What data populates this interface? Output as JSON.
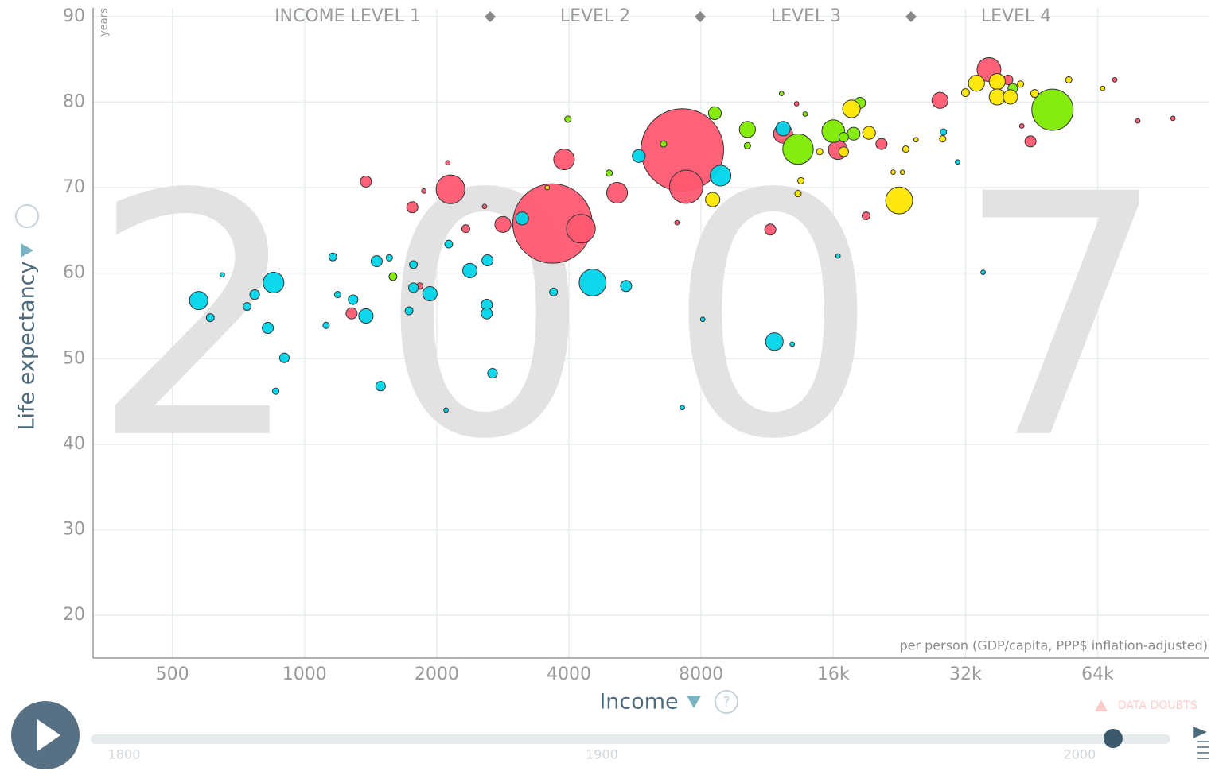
{
  "chart_data": {
    "type": "bubble",
    "year": 2007,
    "x_label": "Income",
    "x_sublabel": "per person (GDP/capita, PPP$ inflation-adjusted)",
    "y_label": "Life expectancy",
    "y_unit": "years",
    "income_levels": [
      "INCOME LEVEL 1",
      "LEVEL 2",
      "LEVEL 3",
      "LEVEL 4"
    ],
    "warning": "DATA DOUBTS",
    "x_log": true,
    "grid": true,
    "xlim": [
      330,
      115000
    ],
    "ylim": [
      15,
      91
    ],
    "xticks": [
      500,
      1000,
      2000,
      4000,
      8000,
      {
        "value": 16000,
        "label": "16k"
      },
      {
        "value": 32000,
        "label": "32k"
      },
      {
        "value": 64000,
        "label": "64k"
      }
    ],
    "yticks": [
      20,
      30,
      40,
      50,
      60,
      70,
      80,
      90
    ],
    "timeline": {
      "lim": [
        1794,
        2018
      ],
      "ticks": [
        1800,
        1900,
        2000
      ]
    },
    "series": [
      {
        "color": "#ff5872",
        "x": [
          7250,
          3670,
          7400,
          4260,
          2150,
          3900,
          5150,
          2830,
          1380,
          1760,
          1280,
          16400,
          12300,
          11500,
          19000,
          20600,
          36200,
          28000,
          45000,
          40000,
          2330,
          2120,
          2570,
          1870,
          70000,
          79000,
          95000,
          43000,
          13200,
          7050,
          1830
        ],
        "values": [
          74.4,
          65.8,
          70.1,
          65.2,
          69.8,
          73.3,
          69.4,
          65.7,
          70.7,
          67.7,
          55.3,
          74.4,
          76.3,
          65.1,
          66.7,
          75.1,
          83.8,
          80.2,
          75.4,
          82.6,
          65.2,
          72.9,
          67.8,
          69.6,
          82.6,
          77.8,
          78.1,
          77.2,
          79.8,
          65.9,
          58.5
        ],
        "sizes": [
          1320,
          1220,
          215,
          160,
          160,
          83,
          83,
          50,
          24,
          24,
          24,
          70,
          70,
          24,
          12,
          24,
          110,
          50,
          24,
          18,
          12,
          4,
          4,
          4,
          4,
          4,
          4,
          4,
          4,
          4,
          8
        ]
      },
      {
        "color": "#7feb00",
        "x": [
          50500,
          13300,
          16000,
          10200,
          8600,
          18400,
          17800,
          16900,
          3980,
          4940,
          1590,
          6570,
          12200,
          41000,
          10200,
          13800
        ],
        "values": [
          79.1,
          74.5,
          76.6,
          76.8,
          78.7,
          79.9,
          76.3,
          75.9,
          78.0,
          71.7,
          59.6,
          75.1,
          81.0,
          81.6,
          74.9,
          78.6
        ],
        "sizes": [
          330,
          180,
          100,
          50,
          32,
          24,
          32,
          18,
          8,
          8,
          12,
          8,
          4,
          18,
          8,
          4
        ]
      },
      {
        "color": "#ffe700",
        "x": [
          22600,
          8500,
          17600,
          33900,
          37800,
          37800,
          40500,
          19300,
          16900,
          13300,
          13500,
          23400,
          32000,
          55000,
          65700,
          14900,
          46000,
          42700,
          28400,
          21900,
          23000,
          24700,
          3570
        ],
        "values": [
          68.5,
          68.6,
          79.2,
          82.2,
          82.4,
          80.6,
          80.6,
          76.4,
          74.2,
          69.3,
          70.8,
          74.5,
          81.1,
          82.6,
          81.6,
          74.2,
          81.0,
          82.1,
          75.7,
          71.8,
          71.8,
          75.6,
          70.0
        ],
        "sizes": [
          140,
          40,
          60,
          50,
          50,
          50,
          40,
          32,
          18,
          8,
          8,
          8,
          12,
          8,
          4,
          8,
          12,
          8,
          8,
          4,
          4,
          4,
          4
        ]
      },
      {
        "color": "#00d5e9",
        "x": [
          574,
          610,
          650,
          740,
          770,
          850,
          825,
          900,
          860,
          1160,
          1190,
          1120,
          1290,
          1380,
          1460,
          1490,
          1560,
          1770,
          1770,
          1730,
          1930,
          2130,
          2380,
          2610,
          2600,
          2600,
          2680,
          2100,
          3130,
          4530,
          5400,
          3690,
          5770,
          8860,
          11750,
          12900,
          8070,
          7250,
          16400,
          35100,
          12300,
          28500,
          30700
        ],
        "values": [
          56.8,
          54.8,
          59.8,
          56.1,
          57.5,
          58.9,
          53.6,
          50.1,
          46.2,
          61.9,
          57.5,
          53.9,
          56.9,
          55.0,
          61.4,
          46.8,
          61.8,
          61.0,
          58.3,
          55.6,
          57.6,
          63.4,
          60.3,
          61.5,
          56.3,
          55.3,
          48.3,
          44.0,
          66.4,
          58.9,
          58.5,
          57.8,
          73.7,
          71.4,
          52.0,
          51.7,
          54.6,
          44.3,
          62.0,
          60.1,
          76.9,
          76.5,
          73.0
        ],
        "sizes": [
          65,
          12,
          4,
          12,
          18,
          83,
          24,
          18,
          8,
          12,
          8,
          8,
          18,
          40,
          24,
          18,
          8,
          12,
          18,
          12,
          40,
          12,
          40,
          24,
          24,
          24,
          18,
          4,
          32,
          140,
          24,
          12,
          32,
          83,
          60,
          4,
          4,
          4,
          4,
          4,
          40,
          8,
          4
        ]
      }
    ]
  }
}
